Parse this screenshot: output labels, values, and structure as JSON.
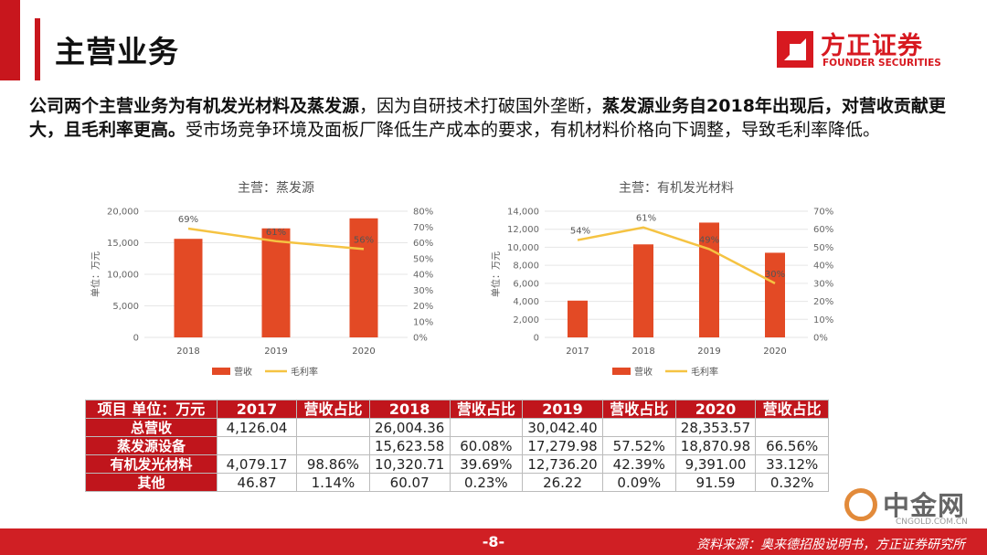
{
  "page": {
    "title": "主营业务",
    "summary": {
      "part1": "公司两个主营业务为有机发光材料及蒸发源",
      "part2": "，因为自研技术打破国外垄断，",
      "part3": "蒸发源业务自2018年出现后，对营收贡献更大，且毛利率更高。",
      "part4": "受市场竞争环境及面板厂降低生产成本的要求，有机材料价格向下调整，导致毛利率降低。"
    },
    "page_number": "-8-",
    "source": "资料来源：奥来德招股说明书，方正证券研究所"
  },
  "logo": {
    "name_cn": "方正证券",
    "name_en": "FOUNDER SECURITIES"
  },
  "watermark": {
    "name_cn": "中金网",
    "domain": "CNGOLD.COM.CN"
  },
  "chart_data": [
    {
      "type": "bar",
      "title": "主营：蒸发源",
      "categories": [
        "2018",
        "2019",
        "2020"
      ],
      "ylabel": "单位：万元",
      "ylim": [
        0,
        20000
      ],
      "yticks": [
        "0",
        "5,000",
        "10,000",
        "15,000",
        "20,000"
      ],
      "y2lim": [
        0,
        80
      ],
      "y2ticks": [
        "0%",
        "10%",
        "20%",
        "30%",
        "40%",
        "50%",
        "60%",
        "70%",
        "80%"
      ],
      "series": [
        {
          "name": "营收",
          "kind": "bar",
          "axis": "left",
          "values": [
            15623.58,
            17279.98,
            18870.98
          ],
          "color": "#e34a25"
        },
        {
          "name": "毛利率",
          "kind": "line",
          "axis": "right",
          "values": [
            69,
            61,
            56
          ],
          "labels": [
            "69%",
            "61%",
            "56%"
          ],
          "color": "#f5c342"
        }
      ],
      "legend": "bottom"
    },
    {
      "type": "bar",
      "title": "主营：有机发光材料",
      "categories": [
        "2017",
        "2018",
        "2019",
        "2020"
      ],
      "ylabel": "单位：万元",
      "ylim": [
        0,
        14000
      ],
      "yticks": [
        "0",
        "2,000",
        "4,000",
        "6,000",
        "8,000",
        "10,000",
        "12,000",
        "14,000"
      ],
      "y2lim": [
        0,
        70
      ],
      "y2ticks": [
        "0%",
        "10%",
        "20%",
        "30%",
        "40%",
        "50%",
        "60%",
        "70%"
      ],
      "series": [
        {
          "name": "营收",
          "kind": "bar",
          "axis": "left",
          "values": [
            4079.17,
            10320.71,
            12736.2,
            9391.0
          ],
          "color": "#e34a25"
        },
        {
          "name": "毛利率",
          "kind": "line",
          "axis": "right",
          "values": [
            54,
            61,
            49,
            30
          ],
          "labels": [
            "54%",
            "61%",
            "49%",
            "30%"
          ],
          "color": "#f5c342"
        }
      ],
      "legend": "bottom"
    }
  ],
  "table": {
    "header": [
      "项目 单位：万元",
      "2017",
      "营收占比",
      "2018",
      "营收占比",
      "2019",
      "营收占比",
      "2020",
      "营收占比"
    ],
    "rows": [
      [
        "总营收",
        "4,126.04",
        "",
        "26,004.36",
        "",
        "30,042.40",
        "",
        "28,353.57",
        ""
      ],
      [
        "蒸发源设备",
        "",
        "",
        "15,623.58",
        "60.08%",
        "17,279.98",
        "57.52%",
        "18,870.98",
        "66.56%"
      ],
      [
        "有机发光材料",
        "4,079.17",
        "98.86%",
        "10,320.71",
        "39.69%",
        "12,736.20",
        "42.39%",
        "9,391.00",
        "33.12%"
      ],
      [
        "其他",
        "46.87",
        "1.14%",
        "60.07",
        "0.23%",
        "26.22",
        "0.09%",
        "91.59",
        "0.32%"
      ]
    ]
  }
}
